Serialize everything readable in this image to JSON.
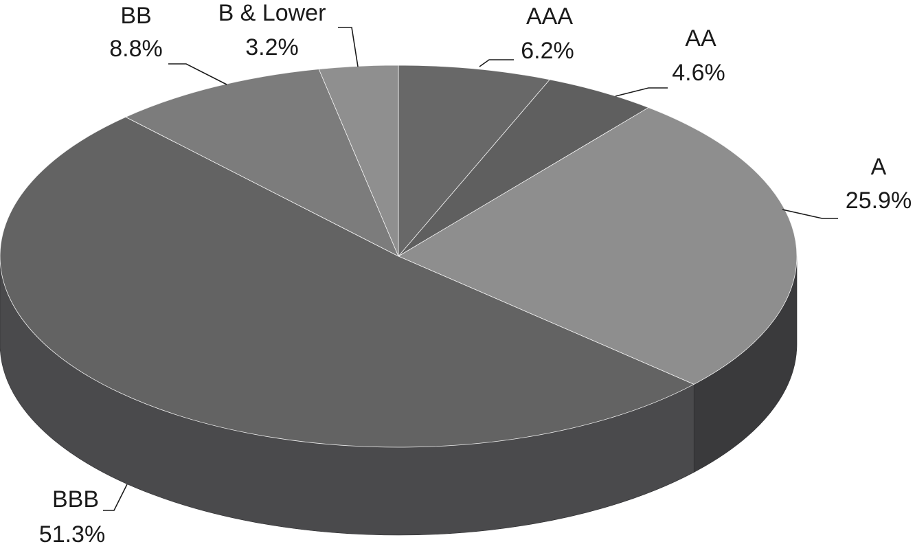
{
  "chart_data": {
    "type": "pie",
    "style": "3d",
    "title": "",
    "start_category": "AAA",
    "direction": "clockwise",
    "categories": [
      "AAA",
      "AA",
      "A",
      "BBB",
      "BB",
      "B & Lower"
    ],
    "values": [
      6.2,
      4.6,
      25.9,
      51.3,
      8.8,
      3.2
    ],
    "value_labels": [
      "6.2%",
      "4.6%",
      "25.9%",
      "51.3%",
      "8.8%",
      "3.2%"
    ],
    "colors": [
      "#686868",
      "#5f5f5f",
      "#8e8e8e",
      "#636363",
      "#7c7c7c",
      "#8f8f8f"
    ],
    "side_colors": [
      "#3c3c3e",
      "#3c3c3e",
      "#3a3a3c",
      "#4a4a4c",
      "#5a5b5e",
      "#606165"
    ],
    "label_placement": "outside-with-leader-lines",
    "legend": "none"
  }
}
